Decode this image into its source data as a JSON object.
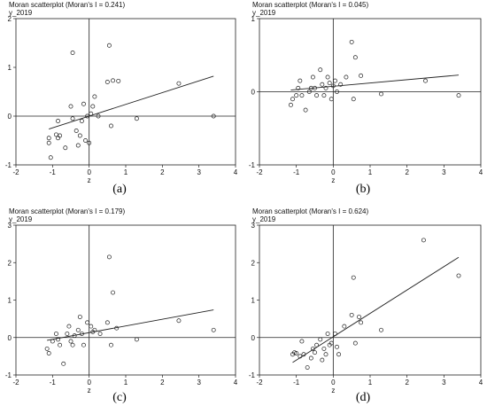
{
  "chart_data": [
    {
      "type": "scatter",
      "label": "(a)",
      "title": "Moran scatterplot (Moran's I = 0.241)",
      "ylabel": "y_2019",
      "xlabel": "z",
      "xlim": [
        -2,
        4
      ],
      "ylim": [
        -1,
        2
      ],
      "xticks": [
        "-2",
        "-1",
        "0",
        "1",
        "2",
        "3",
        "4"
      ],
      "yticks": [
        "-1",
        "0",
        "1",
        "2"
      ],
      "fit_line": {
        "slope": 0.241,
        "intercept": 0.0
      },
      "points": [
        [
          -1.1,
          -0.55
        ],
        [
          -1.1,
          -0.45
        ],
        [
          -1.05,
          -0.85
        ],
        [
          -0.9,
          -0.38
        ],
        [
          -0.85,
          -0.45
        ],
        [
          -0.85,
          -0.1
        ],
        [
          -0.8,
          -0.4
        ],
        [
          -0.65,
          -0.65
        ],
        [
          -0.5,
          0.2
        ],
        [
          -0.45,
          1.3
        ],
        [
          -0.45,
          -0.05
        ],
        [
          -0.35,
          -0.3
        ],
        [
          -0.3,
          -0.6
        ],
        [
          -0.25,
          -0.4
        ],
        [
          -0.2,
          -0.1
        ],
        [
          -0.15,
          0.25
        ],
        [
          -0.1,
          -0.5
        ],
        [
          -0.05,
          0.0
        ],
        [
          0.0,
          -0.55
        ],
        [
          0.05,
          0.05
        ],
        [
          0.1,
          0.2
        ],
        [
          0.15,
          0.4
        ],
        [
          0.25,
          0.0
        ],
        [
          0.5,
          0.7
        ],
        [
          0.55,
          1.45
        ],
        [
          0.6,
          -0.2
        ],
        [
          0.65,
          0.73
        ],
        [
          0.8,
          0.72
        ],
        [
          1.3,
          -0.05
        ],
        [
          2.45,
          0.67
        ],
        [
          3.4,
          0.0
        ]
      ]
    },
    {
      "type": "scatter",
      "label": "(b)",
      "title": "Moran scatterplot (Moran's I = 0.045)",
      "ylabel": "y_2019",
      "xlabel": "z",
      "xlim": [
        -2,
        4
      ],
      "ylim": [
        -1,
        1
      ],
      "xticks": [
        "-2",
        "-1",
        "0",
        "1",
        "2",
        "3",
        "4"
      ],
      "yticks": [
        "-1",
        "0",
        "1"
      ],
      "fit_line": {
        "slope": 0.045,
        "intercept": 0.075
      },
      "points": [
        [
          -1.15,
          -0.18
        ],
        [
          -1.1,
          -0.1
        ],
        [
          -1.0,
          -0.05
        ],
        [
          -0.95,
          0.05
        ],
        [
          -0.9,
          0.15
        ],
        [
          -0.85,
          -0.05
        ],
        [
          -0.75,
          -0.25
        ],
        [
          -0.65,
          0.0
        ],
        [
          -0.6,
          0.05
        ],
        [
          -0.55,
          0.2
        ],
        [
          -0.5,
          0.05
        ],
        [
          -0.45,
          -0.05
        ],
        [
          -0.35,
          0.3
        ],
        [
          -0.3,
          0.1
        ],
        [
          -0.25,
          -0.05
        ],
        [
          -0.2,
          0.05
        ],
        [
          -0.15,
          0.2
        ],
        [
          -0.1,
          0.12
        ],
        [
          -0.05,
          -0.1
        ],
        [
          0.0,
          0.08
        ],
        [
          0.05,
          0.15
        ],
        [
          0.1,
          0.0
        ],
        [
          0.2,
          0.1
        ],
        [
          0.35,
          0.2
        ],
        [
          0.5,
          0.68
        ],
        [
          0.55,
          -0.1
        ],
        [
          0.6,
          0.47
        ],
        [
          0.75,
          0.22
        ],
        [
          1.3,
          -0.03
        ],
        [
          2.5,
          0.15
        ],
        [
          3.4,
          -0.05
        ]
      ]
    },
    {
      "type": "scatter",
      "label": "(c)",
      "title": "Moran scatterplot (Moran's I = 0.179)",
      "ylabel": "y_2019",
      "xlabel": "z",
      "xlim": [
        -2,
        4
      ],
      "ylim": [
        -1,
        3
      ],
      "xticks": [
        "-2",
        "-1",
        "0",
        "1",
        "2",
        "3",
        "4"
      ],
      "yticks": [
        "-1",
        "0",
        "1",
        "2",
        "3"
      ],
      "fit_line": {
        "slope": 0.179,
        "intercept": 0.13
      },
      "points": [
        [
          -1.15,
          -0.3
        ],
        [
          -1.1,
          -0.42
        ],
        [
          -1.0,
          -0.1
        ],
        [
          -0.9,
          0.1
        ],
        [
          -0.85,
          -0.05
        ],
        [
          -0.8,
          -0.2
        ],
        [
          -0.7,
          -0.7
        ],
        [
          -0.6,
          0.1
        ],
        [
          -0.55,
          0.3
        ],
        [
          -0.5,
          -0.1
        ],
        [
          -0.45,
          -0.2
        ],
        [
          -0.4,
          0.05
        ],
        [
          -0.3,
          0.2
        ],
        [
          -0.25,
          0.55
        ],
        [
          -0.2,
          0.1
        ],
        [
          -0.15,
          -0.2
        ],
        [
          -0.05,
          0.4
        ],
        [
          0.05,
          0.3
        ],
        [
          0.1,
          0.15
        ],
        [
          0.15,
          0.2
        ],
        [
          0.3,
          0.1
        ],
        [
          0.5,
          0.4
        ],
        [
          0.55,
          2.15
        ],
        [
          0.6,
          -0.2
        ],
        [
          0.65,
          1.2
        ],
        [
          0.75,
          0.25
        ],
        [
          1.3,
          -0.05
        ],
        [
          2.45,
          0.45
        ],
        [
          3.4,
          0.2
        ]
      ]
    },
    {
      "type": "scatter",
      "label": "(d)",
      "title": "Moran scatterplot (Moran's I = 0.624)",
      "ylabel": "y_2019",
      "xlabel": "z",
      "xlim": [
        -2,
        4
      ],
      "ylim": [
        -1,
        3
      ],
      "xticks": [
        "-2",
        "-1",
        "0",
        "1",
        "2",
        "3",
        "4"
      ],
      "yticks": [
        "-1",
        "0",
        "1",
        "2",
        "3"
      ],
      "fit_line": {
        "slope": 0.624,
        "intercept": 0.02
      },
      "points": [
        [
          -1.1,
          -0.45
        ],
        [
          -1.05,
          -0.4
        ],
        [
          -1.0,
          -0.42
        ],
        [
          -0.9,
          -0.5
        ],
        [
          -0.85,
          -0.1
        ],
        [
          -0.8,
          -0.45
        ],
        [
          -0.7,
          -0.8
        ],
        [
          -0.6,
          -0.55
        ],
        [
          -0.55,
          -0.3
        ],
        [
          -0.5,
          -0.4
        ],
        [
          -0.45,
          -0.2
        ],
        [
          -0.35,
          -0.05
        ],
        [
          -0.3,
          -0.6
        ],
        [
          -0.25,
          -0.3
        ],
        [
          -0.2,
          -0.45
        ],
        [
          -0.15,
          0.1
        ],
        [
          -0.1,
          -0.2
        ],
        [
          -0.05,
          -0.15
        ],
        [
          0.05,
          0.1
        ],
        [
          0.1,
          -0.25
        ],
        [
          0.15,
          -0.45
        ],
        [
          0.3,
          0.3
        ],
        [
          0.5,
          0.6
        ],
        [
          0.55,
          1.6
        ],
        [
          0.6,
          -0.15
        ],
        [
          0.7,
          0.55
        ],
        [
          0.75,
          0.4
        ],
        [
          1.3,
          0.2
        ],
        [
          2.45,
          2.6
        ],
        [
          3.4,
          1.65
        ]
      ]
    }
  ]
}
